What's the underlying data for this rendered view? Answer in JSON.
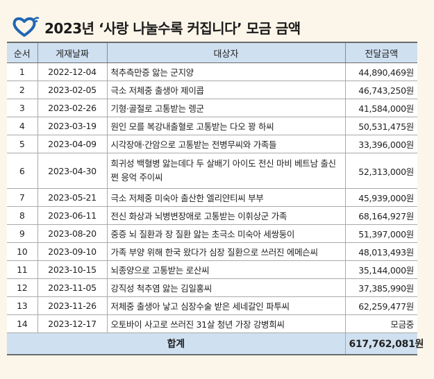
{
  "title": "2023년 ‘사랑 나눌수록 커집니다’ 모금 금액",
  "colors": {
    "heart": "#2266b3",
    "header_bg": "#cfe0f1",
    "page_bg": "#fcf6ea"
  },
  "table": {
    "headers": [
      "순서",
      "게재날짜",
      "대상자",
      "전달금액"
    ],
    "rows": [
      {
        "no": "1",
        "date": "2022-12-04",
        "target": "척추측만증 앓는 군지양",
        "amount": "44,890,469원"
      },
      {
        "no": "2",
        "date": "2023-02-05",
        "target": "극소 저체중 출생아 제이콥",
        "amount": "46,743,250원"
      },
      {
        "no": "3",
        "date": "2023-02-26",
        "target": "기형·골절로 고통받는 렝군",
        "amount": "41,584,000원"
      },
      {
        "no": "4",
        "date": "2023-03-19",
        "target": "원인 모를 복강내출혈로 고통받는 다오 꽝 하씨",
        "amount": "50,531,475원"
      },
      {
        "no": "5",
        "date": "2023-04-09",
        "target": "시각장애·간암으로 고통받는 전병무씨와 가족들",
        "amount": "33,396,000원"
      },
      {
        "no": "6",
        "date": "2023-04-30",
        "target": "희귀성 백혈병 앓는데다 두 살배기 아이도 전신 마비 베트남 출신 쩐 응억 주이씨",
        "amount": "52,313,000원"
      },
      {
        "no": "7",
        "date": "2023-05-21",
        "target": "극소 저체중 미숙아 출산한 엘리얀티씨 부부",
        "amount": "45,939,000원"
      },
      {
        "no": "8",
        "date": "2023-06-11",
        "target": "전신 화상과 뇌병변장애로 고통받는 이휘상군 가족",
        "amount": "68,164,927원"
      },
      {
        "no": "9",
        "date": "2023-08-20",
        "target": "중증 뇌 질환과 장 질환 앓는 초극소 미숙아 세쌍둥이",
        "amount": "51,397,000원"
      },
      {
        "no": "10",
        "date": "2023-09-10",
        "target": "가족 부양 위해 한국 왔다가 심장 질환으로 쓰러진 에메슨씨",
        "amount": "48,013,493원"
      },
      {
        "no": "11",
        "date": "2023-10-15",
        "target": "뇌종양으로 고통받는 로산씨",
        "amount": "35,144,000원"
      },
      {
        "no": "12",
        "date": "2023-11-05",
        "target": "강직성 척추염 앓는 김일홍씨",
        "amount": "37,385,990원"
      },
      {
        "no": "13",
        "date": "2023-11-26",
        "target": "저체중 출생아 낳고 심장수술 받은 세네갈인 파투씨",
        "amount": "62,259,477원"
      },
      {
        "no": "14",
        "date": "2023-12-17",
        "target": "오토바이 사고로 쓰러진 31살 청년 가장 강병희씨",
        "amount": "모금중"
      }
    ],
    "total": {
      "label": "합계",
      "amount": "617,762,081원"
    }
  }
}
